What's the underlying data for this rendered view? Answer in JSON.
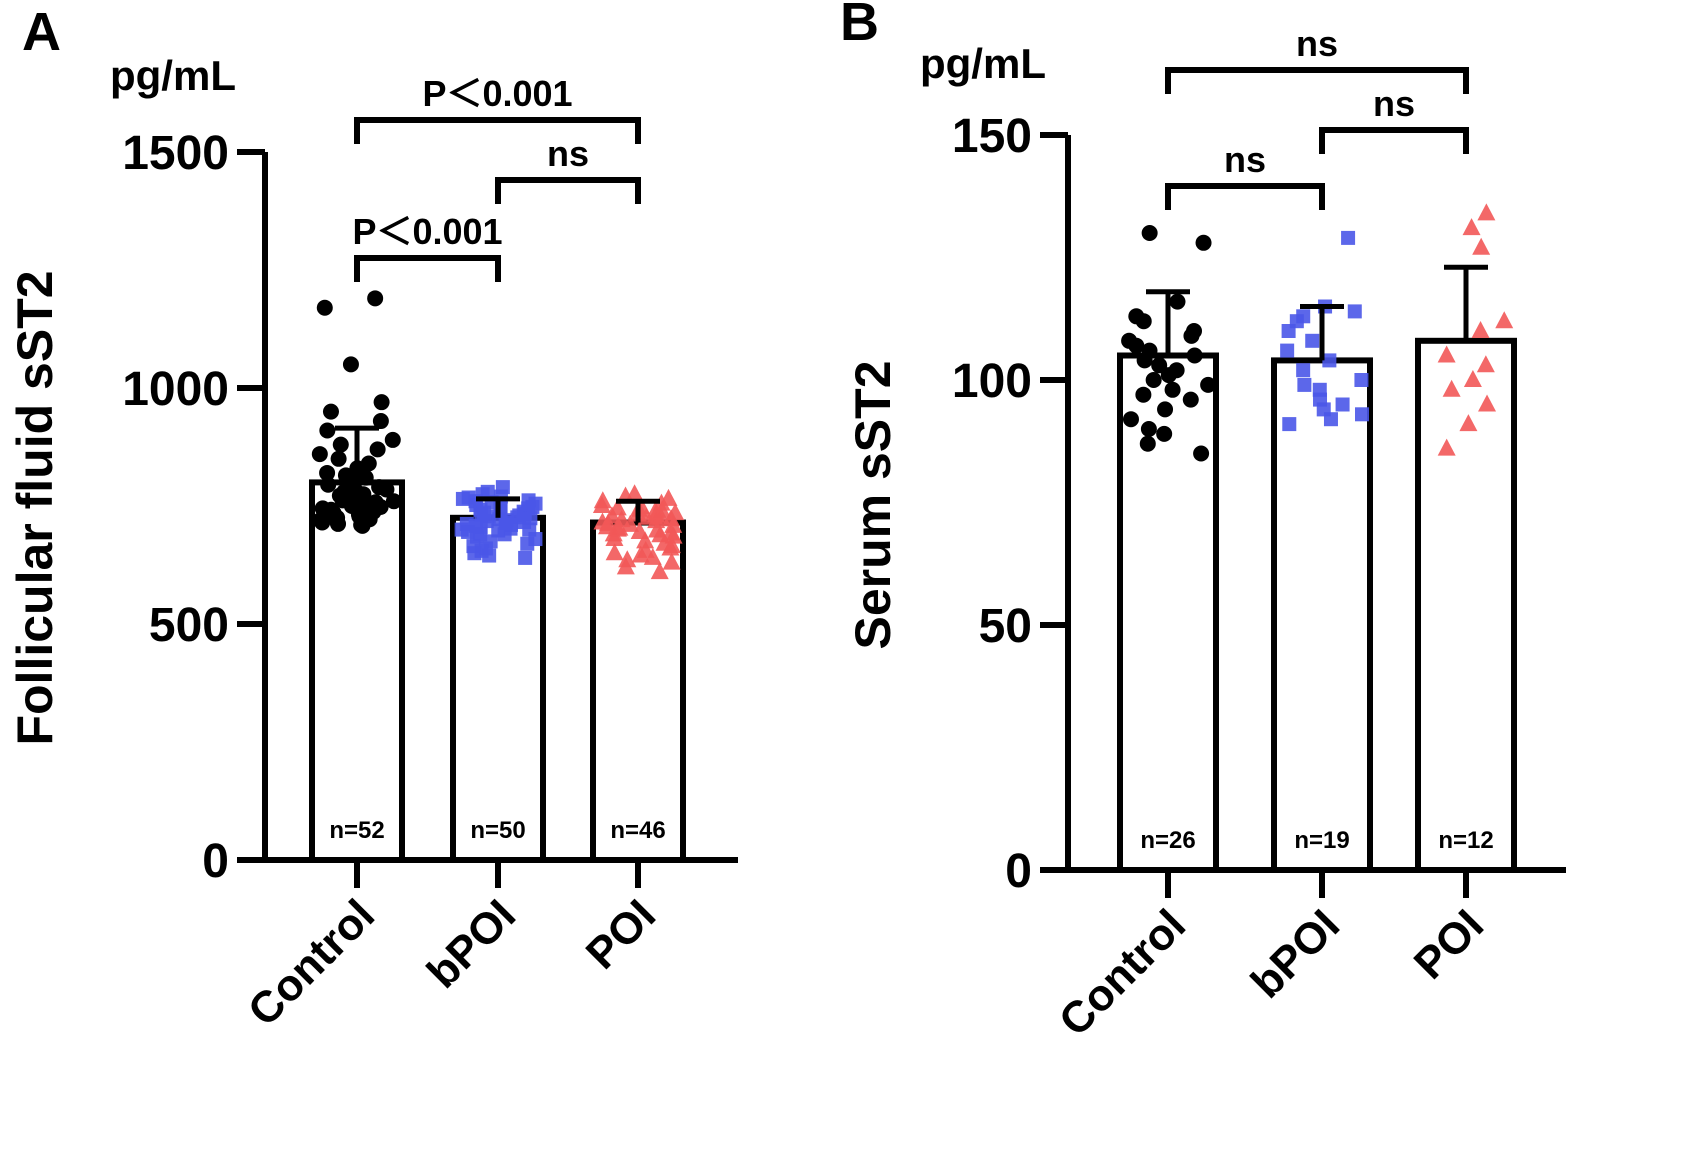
{
  "chart_data": [
    {
      "panel": "A",
      "type": "bar",
      "unit": "pg/mL",
      "ylabel": "Follicular fluid sST2",
      "ylim": [
        0,
        1500
      ],
      "yticks": [
        0,
        500,
        1000,
        1500
      ],
      "categories": [
        "Control",
        "bPOI",
        "POI"
      ],
      "n_labels": [
        "n=52",
        "n=50",
        "n=46"
      ],
      "means": [
        800,
        725,
        715
      ],
      "sd": [
        115,
        40,
        45
      ],
      "point_colors": [
        "#000000",
        "#4a57e8",
        "#f25858"
      ],
      "point_markers": [
        "circle",
        "square",
        "triangle"
      ],
      "points": [
        [
          1190,
          1170,
          1050,
          970,
          950,
          930,
          910,
          890,
          880,
          870,
          860,
          850,
          840,
          830,
          820,
          815,
          810,
          805,
          800,
          795,
          790,
          785,
          780,
          778,
          775,
          772,
          770,
          768,
          765,
          762,
          760,
          758,
          755,
          752,
          750,
          748,
          745,
          742,
          740,
          738,
          735,
          732,
          730,
          728,
          725,
          722,
          720,
          718,
          715,
          712,
          710,
          708
        ],
        [
          790,
          780,
          775,
          770,
          768,
          765,
          762,
          760,
          758,
          755,
          752,
          750,
          748,
          745,
          742,
          740,
          738,
          736,
          734,
          732,
          730,
          728,
          726,
          724,
          722,
          720,
          718,
          716,
          714,
          712,
          710,
          708,
          705,
          702,
          700,
          698,
          695,
          690,
          685,
          680,
          675,
          670,
          665,
          660,
          655,
          650,
          645,
          640,
          700,
          690
        ],
        [
          775,
          770,
          765,
          760,
          755,
          750,
          748,
          745,
          742,
          740,
          738,
          735,
          732,
          730,
          728,
          725,
          722,
          720,
          718,
          715,
          712,
          710,
          708,
          705,
          702,
          700,
          698,
          695,
          692,
          690,
          688,
          685,
          680,
          675,
          670,
          665,
          660,
          655,
          650,
          645,
          640,
          635,
          630,
          620,
          610,
          725
        ]
      ],
      "comparisons": [
        {
          "from": 0,
          "to": 2,
          "label": "P＜0.001",
          "level": 2
        },
        {
          "from": 1,
          "to": 2,
          "label": "ns",
          "level": 1
        },
        {
          "from": 0,
          "to": 1,
          "label": "P＜0.001",
          "level": 0
        }
      ]
    },
    {
      "panel": "B",
      "type": "bar",
      "unit": "pg/mL",
      "ylabel": "Serum sST2",
      "ylim": [
        0,
        150
      ],
      "yticks": [
        0,
        50,
        100,
        150
      ],
      "categories": [
        "Control",
        "bPOI",
        "POI"
      ],
      "n_labels": [
        "n=26",
        "n=19",
        "n=12"
      ],
      "means": [
        105,
        104,
        108
      ],
      "sd": [
        13,
        11,
        15
      ],
      "point_colors": [
        "#000000",
        "#4a57e8",
        "#f25858"
      ],
      "point_markers": [
        "circle",
        "square",
        "triangle"
      ],
      "points": [
        [
          130,
          128,
          116,
          113,
          112,
          110,
          109,
          108,
          107,
          106,
          105,
          104,
          103,
          102,
          101,
          100,
          99,
          98,
          97,
          96,
          94,
          92,
          90,
          89,
          87,
          85
        ],
        [
          129,
          115,
          114,
          113,
          112,
          110,
          108,
          106,
          104,
          102,
          100,
          99,
          98,
          96,
          95,
          94,
          93,
          92,
          91
        ],
        [
          134,
          131,
          127,
          112,
          110,
          105,
          103,
          100,
          98,
          95,
          91,
          86
        ]
      ],
      "comparisons": [
        {
          "from": 0,
          "to": 1,
          "label": "ns",
          "level": 0
        },
        {
          "from": 1,
          "to": 2,
          "label": "ns",
          "level": 1
        },
        {
          "from": 0,
          "to": 2,
          "label": "ns",
          "level": 2
        }
      ]
    }
  ]
}
